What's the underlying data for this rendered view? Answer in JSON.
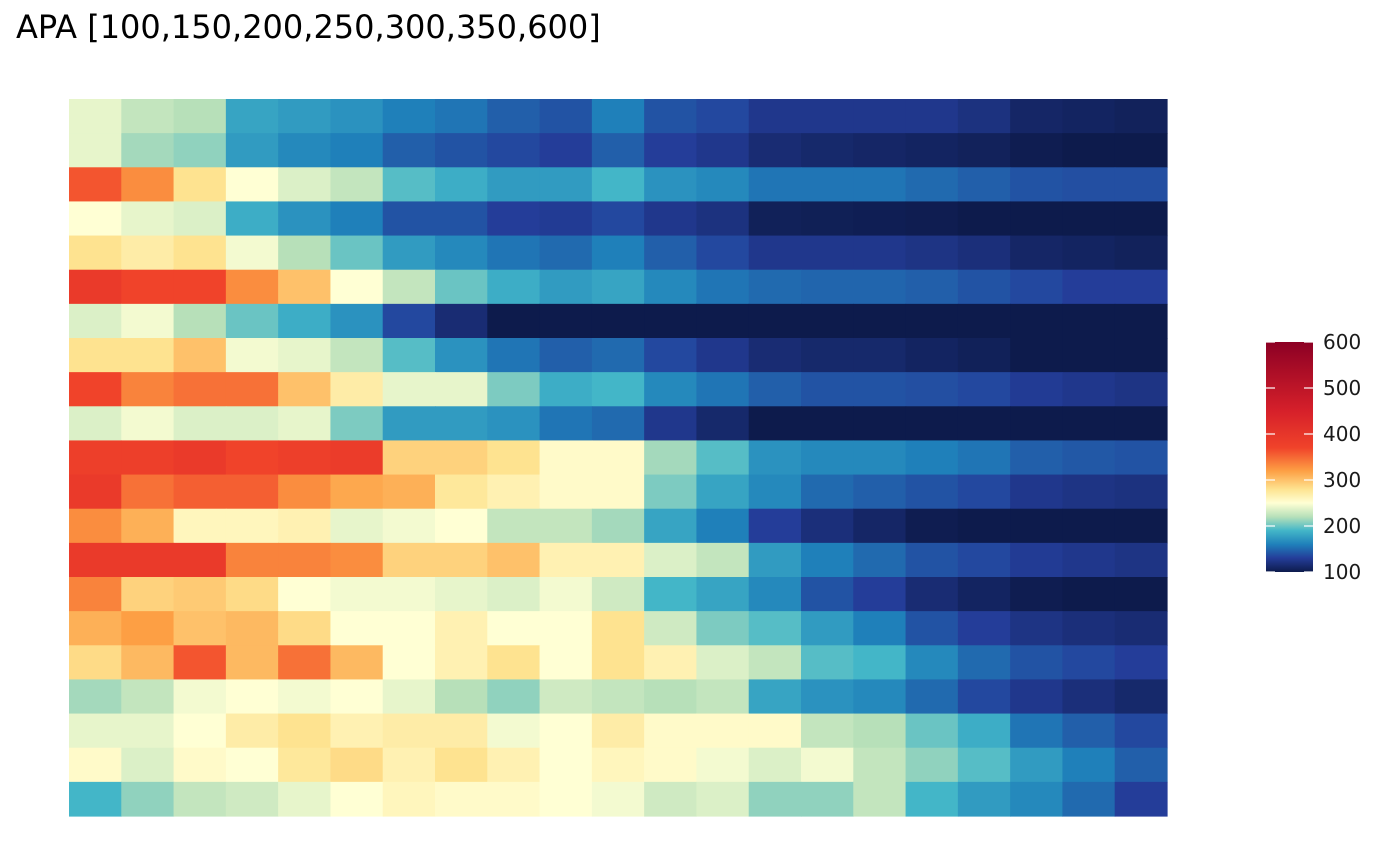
{
  "chart_data": {
    "type": "heatmap",
    "title": "APA [100,150,200,250,300,350,600]",
    "xlabel": "",
    "ylabel": "",
    "grid": false,
    "legend_placement": "right",
    "color_scale": {
      "name": "Spectral (reversed)",
      "domain": [
        100,
        600
      ],
      "stops": [
        {
          "value": 100,
          "color": "#0d1b4c"
        },
        {
          "value": 130,
          "color": "#243d99"
        },
        {
          "value": 160,
          "color": "#1f80ba"
        },
        {
          "value": 190,
          "color": "#43b6c8"
        },
        {
          "value": 220,
          "color": "#b7e0b9"
        },
        {
          "value": 250,
          "color": "#ffffd4"
        },
        {
          "value": 280,
          "color": "#fee390"
        },
        {
          "value": 320,
          "color": "#fd9f44"
        },
        {
          "value": 370,
          "color": "#f0432a"
        },
        {
          "value": 450,
          "color": "#d6202a"
        },
        {
          "value": 600,
          "color": "#8c0024"
        }
      ],
      "ticks": [
        100,
        200,
        300,
        400,
        500,
        600
      ]
    },
    "n_cols": 21,
    "values": [
      [
        240,
        225,
        220,
        180,
        175,
        170,
        160,
        155,
        145,
        140,
        160,
        140,
        135,
        125,
        125,
        125,
        125,
        120,
        110,
        108,
        106
      ],
      [
        240,
        215,
        210,
        175,
        165,
        160,
        145,
        140,
        135,
        130,
        145,
        130,
        125,
        115,
        112,
        110,
        108,
        106,
        102,
        100,
        100
      ],
      [
        360,
        330,
        280,
        250,
        235,
        225,
        195,
        185,
        175,
        175,
        190,
        170,
        165,
        155,
        155,
        155,
        150,
        145,
        140,
        138,
        138
      ],
      [
        250,
        240,
        235,
        185,
        170,
        160,
        140,
        140,
        130,
        128,
        135,
        125,
        120,
        105,
        104,
        103,
        102,
        100,
        100,
        100,
        100
      ],
      [
        280,
        270,
        280,
        245,
        220,
        200,
        175,
        165,
        155,
        150,
        160,
        145,
        135,
        125,
        125,
        125,
        122,
        118,
        110,
        108,
        106
      ],
      [
        390,
        370,
        370,
        330,
        300,
        250,
        225,
        200,
        185,
        175,
        180,
        165,
        155,
        150,
        148,
        148,
        145,
        140,
        135,
        130,
        130
      ],
      [
        235,
        245,
        220,
        200,
        185,
        170,
        135,
        115,
        100,
        100,
        100,
        100,
        100,
        100,
        100,
        100,
        100,
        100,
        100,
        100,
        100
      ],
      [
        280,
        280,
        300,
        245,
        240,
        225,
        195,
        170,
        155,
        145,
        150,
        135,
        125,
        115,
        112,
        112,
        108,
        105,
        100,
        100,
        100
      ],
      [
        370,
        335,
        345,
        345,
        300,
        270,
        240,
        240,
        205,
        185,
        190,
        165,
        155,
        145,
        140,
        140,
        138,
        135,
        128,
        125,
        122
      ],
      [
        235,
        245,
        235,
        235,
        240,
        205,
        175,
        175,
        170,
        155,
        150,
        125,
        112,
        100,
        100,
        100,
        100,
        100,
        100,
        100,
        100
      ],
      [
        380,
        380,
        390,
        370,
        380,
        385,
        290,
        290,
        280,
        255,
        255,
        215,
        195,
        170,
        165,
        165,
        160,
        155,
        145,
        142,
        140
      ],
      [
        390,
        345,
        355,
        355,
        330,
        315,
        310,
        275,
        265,
        255,
        255,
        205,
        180,
        165,
        150,
        145,
        140,
        135,
        125,
        122,
        120
      ],
      [
        330,
        310,
        260,
        260,
        265,
        240,
        245,
        250,
        225,
        225,
        215,
        180,
        160,
        130,
        118,
        110,
        102,
        100,
        100,
        100,
        100
      ],
      [
        390,
        390,
        390,
        335,
        335,
        330,
        290,
        290,
        300,
        265,
        265,
        235,
        225,
        175,
        160,
        150,
        140,
        135,
        128,
        125,
        122
      ],
      [
        335,
        290,
        295,
        285,
        250,
        245,
        245,
        240,
        235,
        245,
        230,
        190,
        180,
        165,
        140,
        130,
        115,
        108,
        102,
        100,
        100
      ],
      [
        310,
        320,
        300,
        305,
        285,
        250,
        250,
        265,
        250,
        250,
        280,
        230,
        205,
        195,
        175,
        160,
        140,
        130,
        122,
        118,
        115
      ],
      [
        285,
        305,
        360,
        305,
        345,
        305,
        250,
        265,
        280,
        250,
        280,
        265,
        235,
        225,
        195,
        190,
        165,
        150,
        140,
        135,
        130
      ],
      [
        215,
        225,
        245,
        250,
        245,
        250,
        240,
        220,
        210,
        230,
        225,
        220,
        225,
        180,
        170,
        165,
        150,
        135,
        125,
        118,
        112
      ],
      [
        240,
        240,
        250,
        270,
        280,
        265,
        270,
        270,
        245,
        250,
        270,
        255,
        255,
        255,
        225,
        220,
        200,
        185,
        155,
        145,
        135
      ],
      [
        255,
        235,
        255,
        250,
        275,
        285,
        265,
        280,
        265,
        250,
        260,
        255,
        245,
        235,
        245,
        225,
        210,
        195,
        175,
        160,
        145
      ],
      [
        190,
        210,
        225,
        230,
        240,
        250,
        260,
        255,
        255,
        250,
        245,
        230,
        235,
        210,
        210,
        225,
        190,
        175,
        165,
        150,
        130
      ]
    ]
  }
}
